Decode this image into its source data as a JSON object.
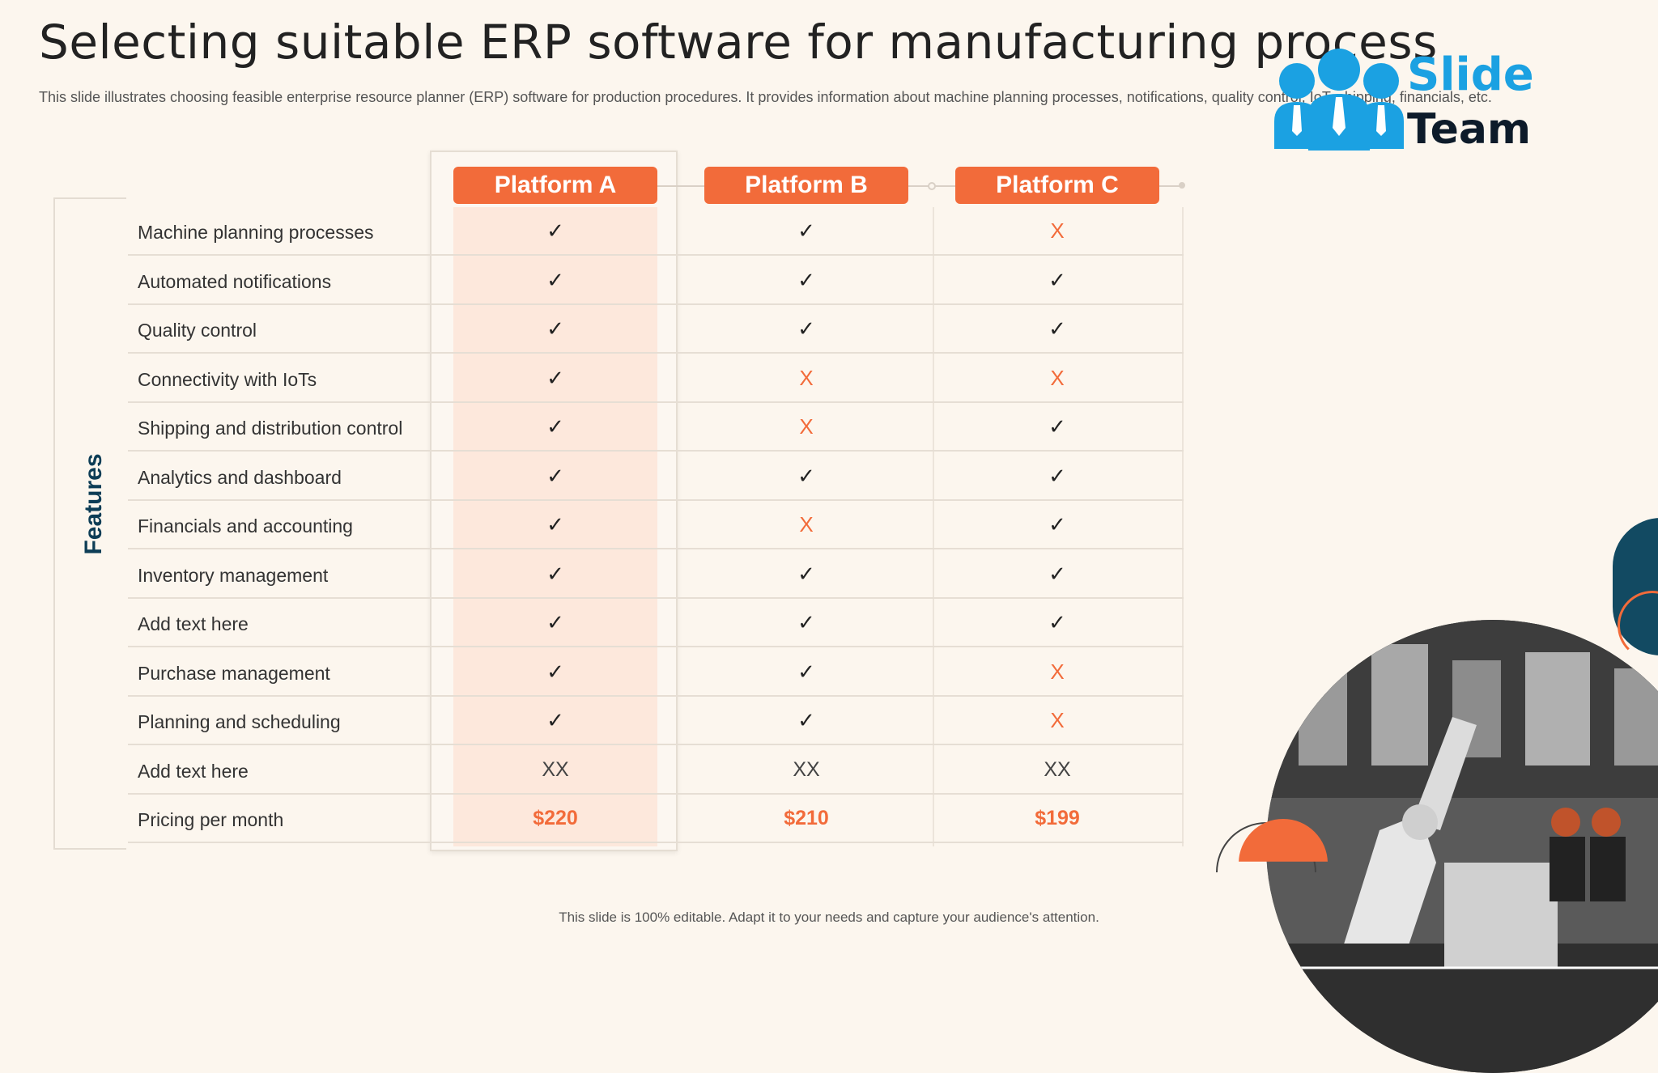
{
  "title": "Selecting suitable ERP software for manufacturing process",
  "subtitle": "This slide illustrates choosing feasible enterprise resource planner (ERP) software for production procedures. It provides information about machine planning processes, notifications, quality control, IoT, shipping, financials, etc.",
  "logo": {
    "line1": "Slide",
    "line2": "Team"
  },
  "features_label": "Features",
  "platforms": [
    "Platform A",
    "Platform B",
    "Platform C"
  ],
  "rows": [
    {
      "label": "Machine planning processes",
      "values": [
        "✓",
        "✓",
        "X"
      ]
    },
    {
      "label": "Automated notifications",
      "values": [
        "✓",
        "✓",
        "✓"
      ]
    },
    {
      "label": "Quality control",
      "values": [
        "✓",
        "✓",
        "✓"
      ]
    },
    {
      "label": "Connectivity with IoTs",
      "values": [
        "✓",
        "X",
        "X"
      ]
    },
    {
      "label": "Shipping and distribution control",
      "values": [
        "✓",
        "X",
        "✓"
      ]
    },
    {
      "label": "Analytics and dashboard",
      "values": [
        "✓",
        "✓",
        "✓"
      ]
    },
    {
      "label": "Financials and accounting",
      "values": [
        "✓",
        "X",
        "✓"
      ]
    },
    {
      "label": "Inventory management",
      "values": [
        "✓",
        "✓",
        "✓"
      ]
    },
    {
      "label": "Add text here",
      "values": [
        "✓",
        "✓",
        "✓"
      ]
    },
    {
      "label": "Purchase management",
      "values": [
        "✓",
        "✓",
        "X"
      ]
    },
    {
      "label": "Planning and scheduling",
      "values": [
        "✓",
        "✓",
        "X"
      ]
    },
    {
      "label": "Add text here",
      "values": [
        "XX",
        "XX",
        "XX"
      ]
    },
    {
      "label": "Pricing per month",
      "values": [
        "$220",
        "$210",
        "$199"
      ]
    }
  ],
  "footer": "This slide is 100% editable. Adapt it to your needs and capture your audience's attention.",
  "colors": {
    "accent": "#f26b3a",
    "highlight": "#fde8dc",
    "brand_blue": "#1ba1e2",
    "dark_teal": "#124a62"
  },
  "icons": {
    "check": "checkmark-icon",
    "cross": "cross-icon",
    "logo": "team-people-icon"
  }
}
